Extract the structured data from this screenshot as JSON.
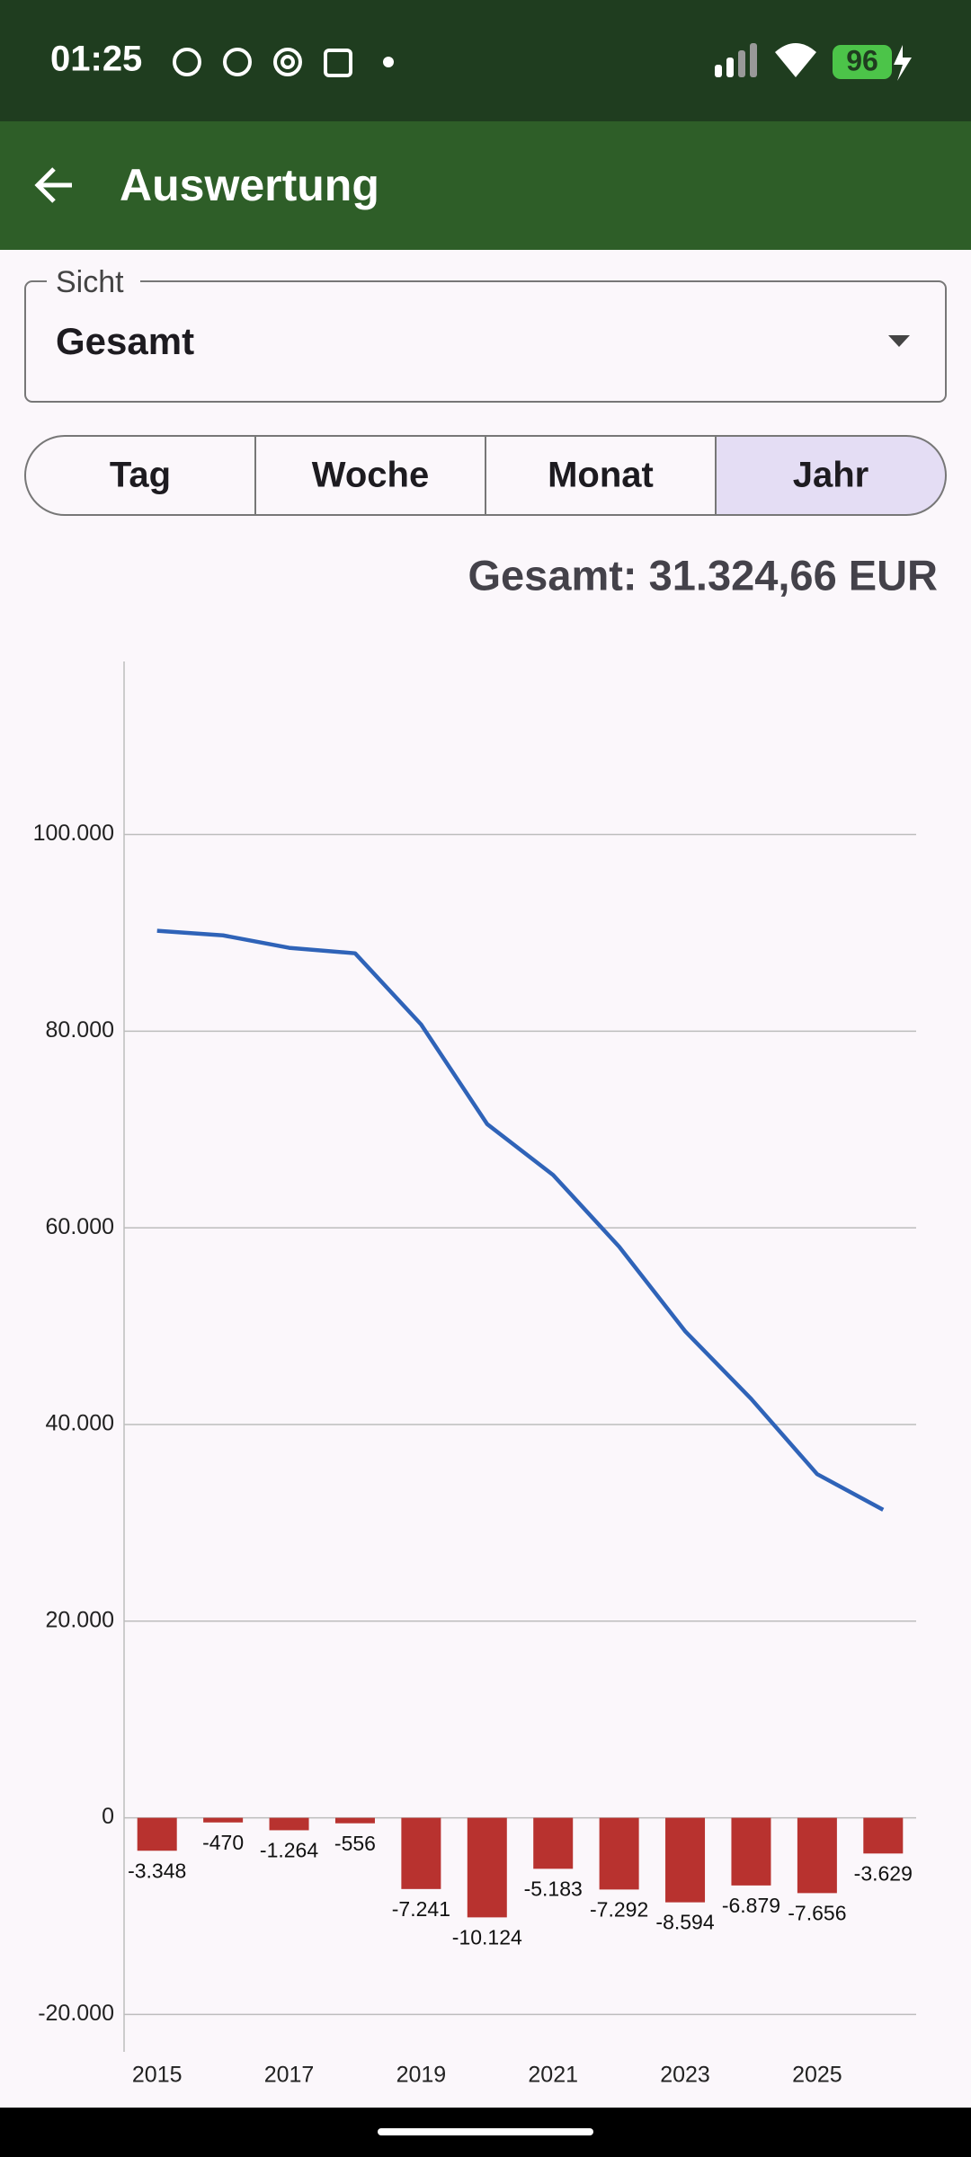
{
  "status_bar": {
    "time": "01:25",
    "battery": "96"
  },
  "app_bar": {
    "title": "Auswertung"
  },
  "view_select": {
    "label": "Sicht",
    "value": "Gesamt"
  },
  "segments": {
    "items": [
      "Tag",
      "Woche",
      "Monat",
      "Jahr"
    ],
    "selected_index": 3
  },
  "total": "Gesamt: 31.324,66 EUR",
  "chart_data": {
    "type": "bar",
    "categories": [
      "2015",
      null,
      "2017",
      null,
      "2019",
      null,
      "2021",
      null,
      "2023",
      null,
      "2025",
      null
    ],
    "series": [
      {
        "type": "bar",
        "color": "#b8322f",
        "values": [
          -3348,
          -470,
          -1264,
          -556,
          -7241,
          -10124,
          -5183,
          -7292,
          -8594,
          -6879,
          -7656,
          -3629
        ],
        "value_labels": [
          "-3.348",
          "-470",
          "-1.264",
          "-556",
          "-7.241",
          "-10.124",
          "-5.183",
          "-7.292",
          "-8.594",
          "-6.879",
          "-7.656",
          "-3.629"
        ]
      },
      {
        "type": "line",
        "color": "#2f63b8",
        "values": [
          90213,
          89743,
          88479,
          87923,
          80682,
          70558,
          65375,
          58083,
          49489,
          42610,
          34954,
          31325
        ]
      }
    ],
    "ylim": [
      -23800,
      117600
    ],
    "yticks": [
      {
        "value": -20000,
        "label": "-20.000"
      },
      0,
      {
        "value": 20000,
        "label": "20.000"
      },
      {
        "value": 40000,
        "label": "40.000"
      },
      {
        "value": 60000,
        "label": "60.000"
      },
      {
        "value": 80000,
        "label": "80.000"
      },
      {
        "value": 100000,
        "label": "100.000"
      }
    ],
    "grid": true
  }
}
